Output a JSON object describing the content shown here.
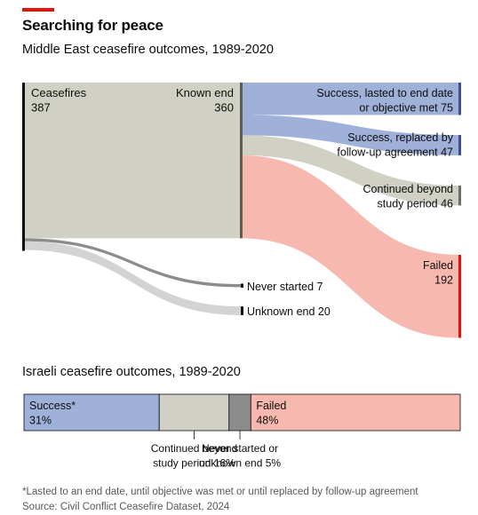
{
  "header": {
    "title": "Searching for peace",
    "subtitle": "Middle East ceasefire outcomes, 1989-2020",
    "subtitle2": "Israeli ceasefire outcomes, 1989-2020"
  },
  "footer": {
    "footnote": "*Lasted to an end date, until objective was met or until replaced by follow-up agreement",
    "source": "Source: Civil Conflict Ceasefire Dataset, 2024"
  },
  "colors": {
    "accent": "#e3120b",
    "grey": "#d0d0c5",
    "blue": "#9fb0d9",
    "pink": "#f7b8b0",
    "dark_grey": "#8c8c8c"
  },
  "chart_data": [
    {
      "type": "sankey",
      "nodes": [
        {
          "id": "ceasefires",
          "label": "Ceasefires",
          "value_label": "387",
          "value": 387
        },
        {
          "id": "known_end",
          "label": "Known end",
          "value_label": "360",
          "value": 360
        },
        {
          "id": "success_end",
          "label_lines": [
            "Success, lasted to end date",
            "or objective met 75"
          ],
          "value": 75
        },
        {
          "id": "success_replaced",
          "label_lines": [
            "Success, replaced by",
            "follow-up agreement 47"
          ],
          "value": 47
        },
        {
          "id": "continued",
          "label_lines": [
            "Continued beyond",
            "study period 46"
          ],
          "value": 46
        },
        {
          "id": "failed",
          "label_lines": [
            "Failed",
            "192"
          ],
          "value": 192
        },
        {
          "id": "never_started",
          "label_lines": [
            "Never started 7"
          ],
          "value": 7
        },
        {
          "id": "unknown_end",
          "label_lines": [
            "Unknown end 20"
          ],
          "value": 20
        }
      ],
      "links": [
        {
          "source": "ceasefires",
          "target": "known_end",
          "value": 360
        },
        {
          "source": "ceasefires",
          "target": "never_started",
          "value": 7
        },
        {
          "source": "ceasefires",
          "target": "unknown_end",
          "value": 20
        },
        {
          "source": "known_end",
          "target": "success_end",
          "value": 75
        },
        {
          "source": "known_end",
          "target": "success_replaced",
          "value": 47
        },
        {
          "source": "known_end",
          "target": "continued",
          "value": 46
        },
        {
          "source": "known_end",
          "target": "failed",
          "value": 192
        }
      ]
    },
    {
      "type": "bar",
      "orientation": "horizontal-stacked",
      "segments": [
        {
          "value": 31,
          "label_lines": [
            "Success*",
            "31%"
          ],
          "color": "#9fb0d9",
          "label_position": "inside"
        },
        {
          "value": 16,
          "label_lines": [
            "Continued beyond",
            "study period 16%"
          ],
          "color": "#d0d0c5",
          "label_position": "below"
        },
        {
          "value": 5,
          "label_lines": [
            "Never started or",
            "unknown end 5%"
          ],
          "color": "#8c8c8c",
          "label_position": "below"
        },
        {
          "value": 48,
          "label_lines": [
            "Failed",
            "48%"
          ],
          "color": "#f7b8b0",
          "label_position": "inside"
        }
      ]
    }
  ]
}
